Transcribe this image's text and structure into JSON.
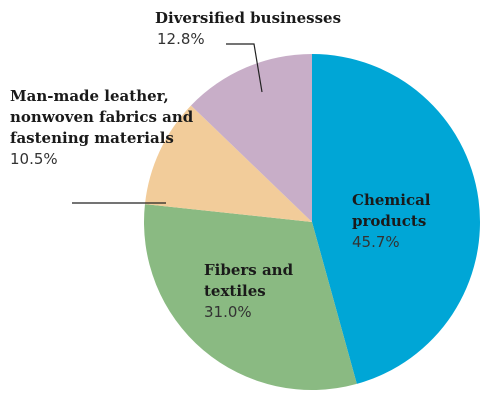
{
  "chart_data": {
    "type": "pie",
    "categories": [
      "Chemical products",
      "Fibers and textiles",
      "Man-made leather, nonwoven fabrics and fastening materials",
      "Diversified businesses"
    ],
    "values": [
      45.7,
      31.0,
      10.5,
      12.8
    ],
    "value_labels": [
      "45.7%",
      "31.0%",
      "10.5%",
      "12.8%"
    ],
    "colors": [
      "#00a6d6",
      "#8aba82",
      "#f2cc9a",
      "#c8aec8"
    ]
  }
}
